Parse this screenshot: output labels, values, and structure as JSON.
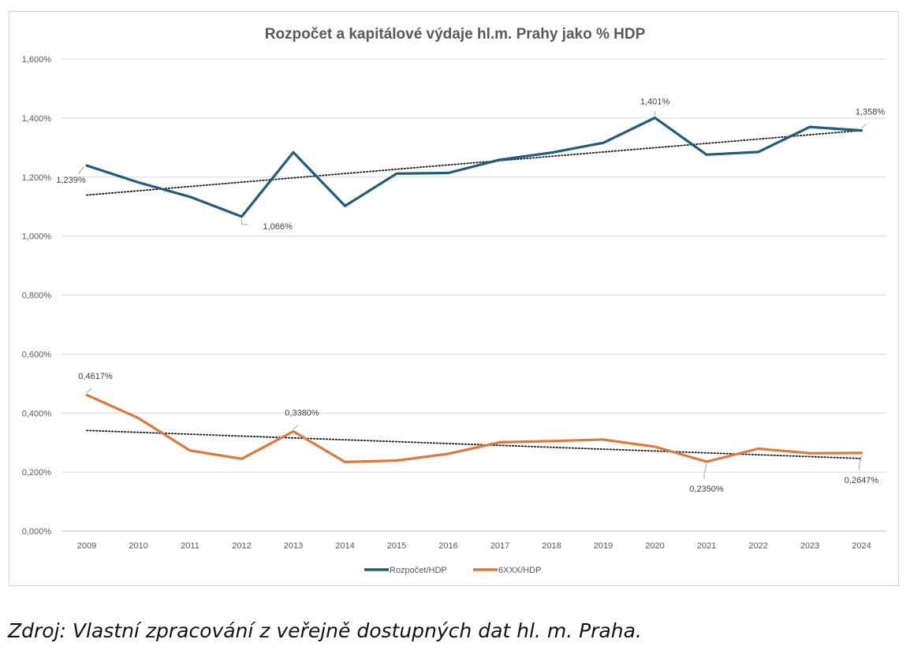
{
  "chart_data": {
    "type": "line",
    "title": "Rozpočet a kapitálové výdaje hl.m. Prahy jako % HDP",
    "xlabel": "",
    "ylabel": "",
    "ylim": [
      0,
      1.6
    ],
    "ytick_labels": [
      "0,000%",
      "0,200%",
      "0,400%",
      "0,600%",
      "0,800%",
      "1,000%",
      "1,200%",
      "1,400%",
      "1,600%"
    ],
    "categories": [
      "2009",
      "2010",
      "2011",
      "2012",
      "2013",
      "2014",
      "2015",
      "2016",
      "2017",
      "2018",
      "2019",
      "2020",
      "2021",
      "2022",
      "2023",
      "2024"
    ],
    "series": [
      {
        "name": "Rozpočet/HDP",
        "color": "#1f5d7a",
        "values": [
          1.239,
          1.182,
          1.133,
          1.066,
          1.284,
          1.102,
          1.212,
          1.214,
          1.259,
          1.283,
          1.316,
          1.401,
          1.276,
          1.285,
          1.37,
          1.358
        ],
        "trendline": [
          1.139,
          1.358
        ]
      },
      {
        "name": "6XXX/HDP",
        "color": "#e2773a",
        "values": [
          0.4617,
          0.383,
          0.273,
          0.245,
          0.338,
          0.234,
          0.239,
          0.262,
          0.301,
          0.305,
          0.31,
          0.286,
          0.235,
          0.279,
          0.264,
          0.2647
        ],
        "trendline": [
          0.341,
          0.246
        ]
      }
    ],
    "annotations": [
      {
        "series": 0,
        "index": 0,
        "text": "1,239%",
        "placement": "below-left"
      },
      {
        "series": 0,
        "index": 3,
        "text": "1,066%",
        "placement": "below-right"
      },
      {
        "series": 0,
        "index": 11,
        "text": "1,401%",
        "placement": "above"
      },
      {
        "series": 0,
        "index": 15,
        "text": "1,358%",
        "placement": "above-right"
      },
      {
        "series": 1,
        "index": 0,
        "text": "0,4617%",
        "placement": "above-right"
      },
      {
        "series": 1,
        "index": 4,
        "text": "0,3380%",
        "placement": "above-right"
      },
      {
        "series": 1,
        "index": 12,
        "text": "0,2350%",
        "placement": "below"
      },
      {
        "series": 1,
        "index": 15,
        "text": "0,2647%",
        "placement": "below"
      }
    ],
    "legend": [
      {
        "label": "Rozpočet/HDP",
        "color": "#1f5d7a"
      },
      {
        "label": "6XXX/HDP",
        "color": "#e2773a"
      }
    ],
    "legend_position": "bottom-center",
    "grid": true
  },
  "source_note": "Zdroj: Vlastní zpracování z veřejně dostupných dat hl. m. Praha."
}
